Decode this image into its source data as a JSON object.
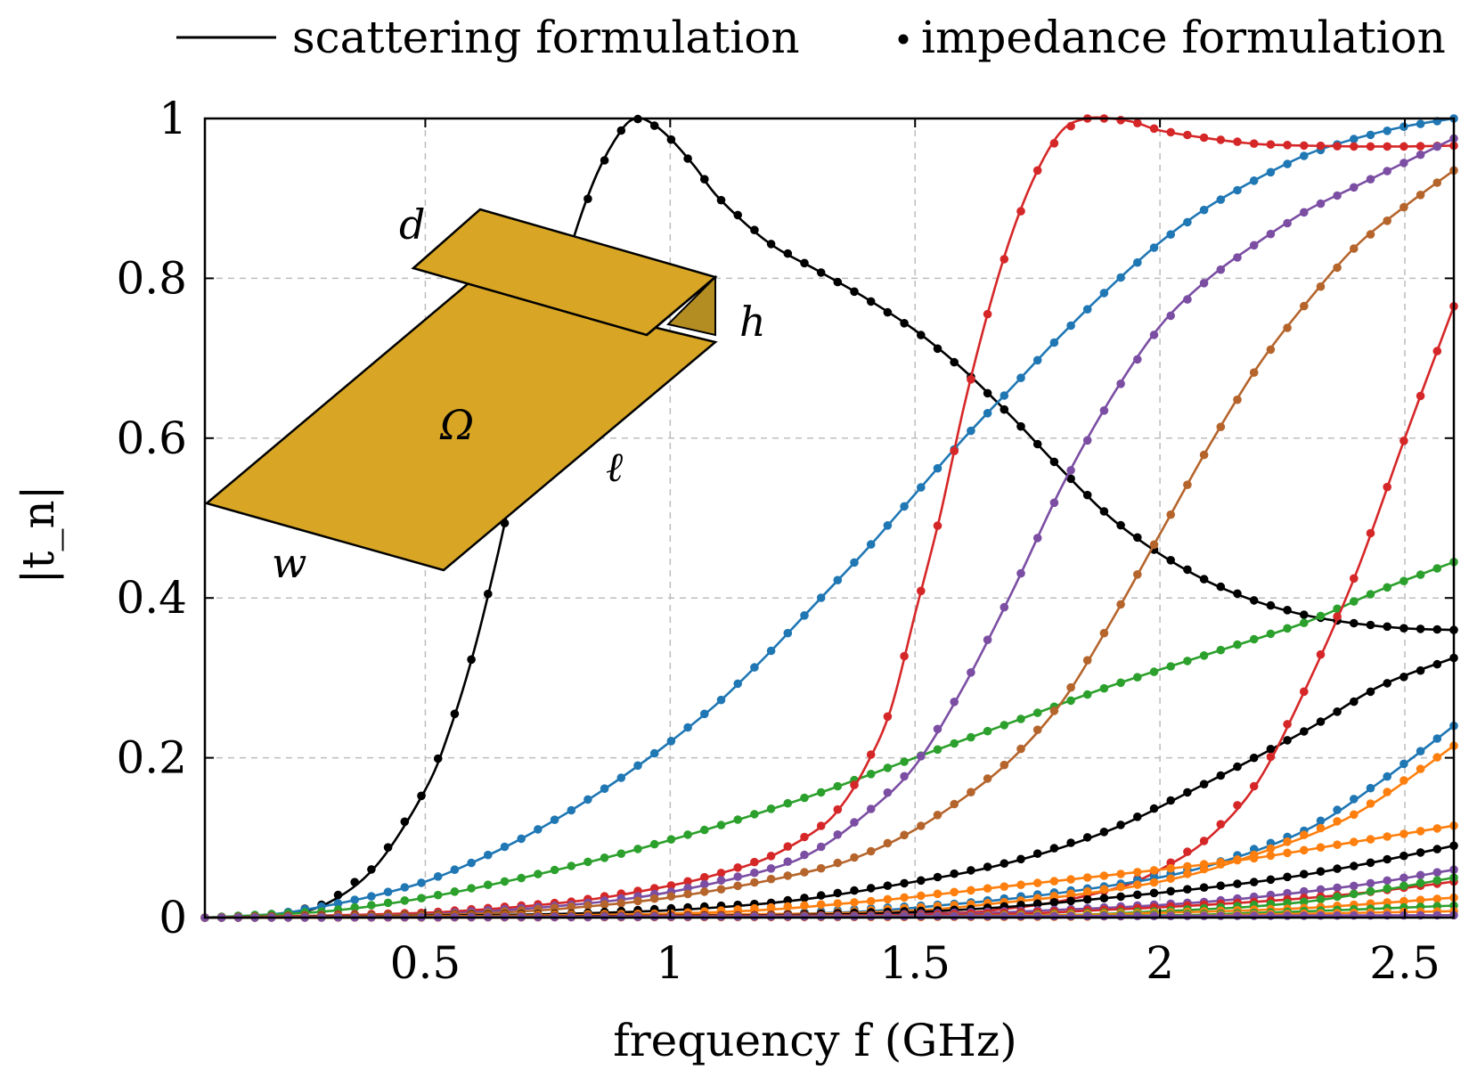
{
  "chart_data": {
    "type": "line",
    "title": "",
    "xlabel": "frequency f (GHz)",
    "ylabel": "|t_n|",
    "xlim": [
      0.05,
      2.6
    ],
    "ylim": [
      0,
      1
    ],
    "xticks": [
      {
        "v": 0.5,
        "label": "0.5"
      },
      {
        "v": 1,
        "label": "1"
      },
      {
        "v": 1.5,
        "label": "1.5"
      },
      {
        "v": 2,
        "label": "2"
      },
      {
        "v": 2.5,
        "label": "2.5"
      }
    ],
    "yticks": [
      {
        "v": 0,
        "label": "0"
      },
      {
        "v": 0.2,
        "label": "0.2"
      },
      {
        "v": 0.4,
        "label": "0.4"
      },
      {
        "v": 0.6,
        "label": "0.6"
      },
      {
        "v": 0.8,
        "label": "0.8"
      },
      {
        "v": 1,
        "label": "1"
      }
    ],
    "grid": true,
    "legend_position": "top",
    "legend": [
      {
        "label": "scattering formulation",
        "marker": "line"
      },
      {
        "label": "impedance formulation",
        "marker": "dot"
      }
    ],
    "inset_labels": {
      "d": "d",
      "h": "h",
      "omega": "Ω",
      "ell": "ℓ",
      "w": "w"
    },
    "series": [
      {
        "color": "#000000",
        "points": [
          [
            0.05,
            0
          ],
          [
            0.2,
            0.003
          ],
          [
            0.3,
            0.018
          ],
          [
            0.4,
            0.065
          ],
          [
            0.5,
            0.16
          ],
          [
            0.55,
            0.235
          ],
          [
            0.6,
            0.335
          ],
          [
            0.65,
            0.46
          ],
          [
            0.7,
            0.6
          ],
          [
            0.75,
            0.73
          ],
          [
            0.8,
            0.845
          ],
          [
            0.85,
            0.93
          ],
          [
            0.9,
            0.985
          ],
          [
            0.93,
            1.0
          ],
          [
            0.96,
            0.995
          ],
          [
            1.0,
            0.975
          ],
          [
            1.05,
            0.94
          ],
          [
            1.1,
            0.9
          ],
          [
            1.2,
            0.845
          ],
          [
            1.3,
            0.81
          ],
          [
            1.4,
            0.775
          ],
          [
            1.5,
            0.735
          ],
          [
            1.6,
            0.685
          ],
          [
            1.7,
            0.625
          ],
          [
            1.8,
            0.56
          ],
          [
            1.9,
            0.5
          ],
          [
            2.0,
            0.455
          ],
          [
            2.1,
            0.42
          ],
          [
            2.2,
            0.395
          ],
          [
            2.3,
            0.378
          ],
          [
            2.4,
            0.368
          ],
          [
            2.5,
            0.362
          ],
          [
            2.6,
            0.36
          ]
        ]
      },
      {
        "color": "#1f77b4",
        "points": [
          [
            0.05,
            0
          ],
          [
            0.2,
            0.005
          ],
          [
            0.3,
            0.015
          ],
          [
            0.4,
            0.028
          ],
          [
            0.5,
            0.045
          ],
          [
            0.6,
            0.07
          ],
          [
            0.7,
            0.1
          ],
          [
            0.8,
            0.135
          ],
          [
            0.9,
            0.175
          ],
          [
            1.0,
            0.22
          ],
          [
            1.1,
            0.27
          ],
          [
            1.2,
            0.33
          ],
          [
            1.3,
            0.395
          ],
          [
            1.4,
            0.46
          ],
          [
            1.5,
            0.53
          ],
          [
            1.6,
            0.6
          ],
          [
            1.7,
            0.665
          ],
          [
            1.8,
            0.73
          ],
          [
            1.9,
            0.79
          ],
          [
            2.0,
            0.845
          ],
          [
            2.1,
            0.89
          ],
          [
            2.2,
            0.925
          ],
          [
            2.3,
            0.955
          ],
          [
            2.4,
            0.975
          ],
          [
            2.5,
            0.99
          ],
          [
            2.6,
            1.0
          ]
        ]
      },
      {
        "color": "#2ca02c",
        "points": [
          [
            0.05,
            0
          ],
          [
            0.3,
            0.008
          ],
          [
            0.5,
            0.025
          ],
          [
            0.7,
            0.05
          ],
          [
            0.9,
            0.08
          ],
          [
            1.1,
            0.115
          ],
          [
            1.3,
            0.155
          ],
          [
            1.5,
            0.2
          ],
          [
            1.7,
            0.245
          ],
          [
            1.9,
            0.29
          ],
          [
            2.1,
            0.33
          ],
          [
            2.3,
            0.37
          ],
          [
            2.45,
            0.41
          ],
          [
            2.6,
            0.445
          ]
        ]
      },
      {
        "color": "#d62728",
        "points": [
          [
            0.05,
            0
          ],
          [
            0.5,
            0.006
          ],
          [
            0.8,
            0.02
          ],
          [
            1.0,
            0.04
          ],
          [
            1.1,
            0.055
          ],
          [
            1.2,
            0.075
          ],
          [
            1.3,
            0.11
          ],
          [
            1.35,
            0.14
          ],
          [
            1.4,
            0.19
          ],
          [
            1.45,
            0.26
          ],
          [
            1.5,
            0.38
          ],
          [
            1.55,
            0.5
          ],
          [
            1.6,
            0.64
          ],
          [
            1.65,
            0.76
          ],
          [
            1.7,
            0.86
          ],
          [
            1.75,
            0.935
          ],
          [
            1.8,
            0.985
          ],
          [
            1.85,
            1.0
          ],
          [
            1.9,
            1.0
          ],
          [
            1.95,
            0.995
          ],
          [
            2.0,
            0.985
          ],
          [
            2.1,
            0.975
          ],
          [
            2.2,
            0.968
          ],
          [
            2.3,
            0.966
          ],
          [
            2.4,
            0.965
          ],
          [
            2.5,
            0.965
          ],
          [
            2.6,
            0.966
          ]
        ]
      },
      {
        "color": "#7b4ea3",
        "points": [
          [
            0.05,
            0
          ],
          [
            0.5,
            0.004
          ],
          [
            0.8,
            0.016
          ],
          [
            1.0,
            0.032
          ],
          [
            1.2,
            0.06
          ],
          [
            1.3,
            0.085
          ],
          [
            1.4,
            0.13
          ],
          [
            1.5,
            0.19
          ],
          [
            1.6,
            0.29
          ],
          [
            1.7,
            0.41
          ],
          [
            1.8,
            0.54
          ],
          [
            1.9,
            0.65
          ],
          [
            2.0,
            0.74
          ],
          [
            2.1,
            0.8
          ],
          [
            2.2,
            0.845
          ],
          [
            2.3,
            0.885
          ],
          [
            2.4,
            0.915
          ],
          [
            2.5,
            0.945
          ],
          [
            2.6,
            0.975
          ]
        ]
      },
      {
        "color": "#b5652c",
        "points": [
          [
            0.05,
            0
          ],
          [
            0.6,
            0.005
          ],
          [
            0.9,
            0.018
          ],
          [
            1.1,
            0.035
          ],
          [
            1.3,
            0.06
          ],
          [
            1.4,
            0.08
          ],
          [
            1.5,
            0.11
          ],
          [
            1.6,
            0.15
          ],
          [
            1.7,
            0.2
          ],
          [
            1.8,
            0.27
          ],
          [
            1.9,
            0.37
          ],
          [
            2.0,
            0.48
          ],
          [
            2.1,
            0.59
          ],
          [
            2.2,
            0.69
          ],
          [
            2.3,
            0.77
          ],
          [
            2.4,
            0.84
          ],
          [
            2.5,
            0.89
          ],
          [
            2.6,
            0.935
          ]
        ]
      },
      {
        "color": "#000000",
        "points": [
          [
            0.05,
            0
          ],
          [
            0.8,
            0.005
          ],
          [
            1.2,
            0.018
          ],
          [
            1.5,
            0.045
          ],
          [
            1.7,
            0.07
          ],
          [
            1.9,
            0.11
          ],
          [
            2.1,
            0.17
          ],
          [
            2.3,
            0.235
          ],
          [
            2.45,
            0.29
          ],
          [
            2.6,
            0.325
          ]
        ]
      },
      {
        "color": "#d62728",
        "points": [
          [
            0.05,
            0
          ],
          [
            1.4,
            0.004
          ],
          [
            1.7,
            0.012
          ],
          [
            1.9,
            0.035
          ],
          [
            2.0,
            0.06
          ],
          [
            2.1,
            0.1
          ],
          [
            2.2,
            0.17
          ],
          [
            2.3,
            0.29
          ],
          [
            2.4,
            0.43
          ],
          [
            2.5,
            0.6
          ],
          [
            2.6,
            0.765
          ]
        ]
      },
      {
        "color": "#1f77b4",
        "points": [
          [
            0.05,
            0
          ],
          [
            1.2,
            0.004
          ],
          [
            1.6,
            0.018
          ],
          [
            1.9,
            0.04
          ],
          [
            2.1,
            0.065
          ],
          [
            2.3,
            0.11
          ],
          [
            2.45,
            0.17
          ],
          [
            2.6,
            0.24
          ]
        ]
      },
      {
        "color": "#ff7f0e",
        "points": [
          [
            0.05,
            0
          ],
          [
            1.3,
            0.005
          ],
          [
            1.7,
            0.02
          ],
          [
            2.0,
            0.045
          ],
          [
            2.2,
            0.08
          ],
          [
            2.4,
            0.13
          ],
          [
            2.6,
            0.215
          ]
        ]
      },
      {
        "color": "#ff7f0e",
        "points": [
          [
            0.05,
            0
          ],
          [
            1.0,
            0.005
          ],
          [
            1.4,
            0.02
          ],
          [
            1.7,
            0.04
          ],
          [
            2.0,
            0.06
          ],
          [
            2.2,
            0.075
          ],
          [
            2.4,
            0.095
          ],
          [
            2.6,
            0.115
          ]
        ]
      },
      {
        "color": "#000000",
        "points": [
          [
            0.05,
            0
          ],
          [
            1.2,
            0.003
          ],
          [
            1.6,
            0.01
          ],
          [
            1.9,
            0.025
          ],
          [
            2.2,
            0.045
          ],
          [
            2.4,
            0.065
          ],
          [
            2.6,
            0.09
          ]
        ]
      },
      {
        "color": "#7b4ea3",
        "points": [
          [
            0.05,
            0
          ],
          [
            1.4,
            0.003
          ],
          [
            1.8,
            0.01
          ],
          [
            2.1,
            0.02
          ],
          [
            2.4,
            0.04
          ],
          [
            2.6,
            0.06
          ]
        ]
      },
      {
        "color": "#d62728",
        "points": [
          [
            0.05,
            0
          ],
          [
            1.5,
            0.003
          ],
          [
            1.9,
            0.01
          ],
          [
            2.2,
            0.02
          ],
          [
            2.4,
            0.03
          ],
          [
            2.6,
            0.045
          ]
        ]
      },
      {
        "color": "#2ca02c",
        "points": [
          [
            0.05,
            0
          ],
          [
            1.6,
            0.002
          ],
          [
            2.0,
            0.008
          ],
          [
            2.3,
            0.02
          ],
          [
            2.6,
            0.05
          ]
        ]
      },
      {
        "color": "#ff7f0e",
        "points": [
          [
            0.05,
            0
          ],
          [
            1.6,
            0.002
          ],
          [
            2.0,
            0.006
          ],
          [
            2.3,
            0.012
          ],
          [
            2.6,
            0.025
          ]
        ]
      },
      {
        "color": "#2ca02c",
        "points": [
          [
            0.05,
            0
          ],
          [
            1.8,
            0.002
          ],
          [
            2.2,
            0.006
          ],
          [
            2.6,
            0.015
          ]
        ]
      },
      {
        "color": "#ff7f0e",
        "points": [
          [
            0.05,
            0
          ],
          [
            1.8,
            0.001
          ],
          [
            2.2,
            0.004
          ],
          [
            2.6,
            0.008
          ]
        ]
      },
      {
        "color": "#7b4ea3",
        "points": [
          [
            0.05,
            0
          ],
          [
            1.0,
            0.001
          ],
          [
            2.0,
            0.002
          ],
          [
            2.6,
            0.003
          ]
        ]
      }
    ]
  }
}
